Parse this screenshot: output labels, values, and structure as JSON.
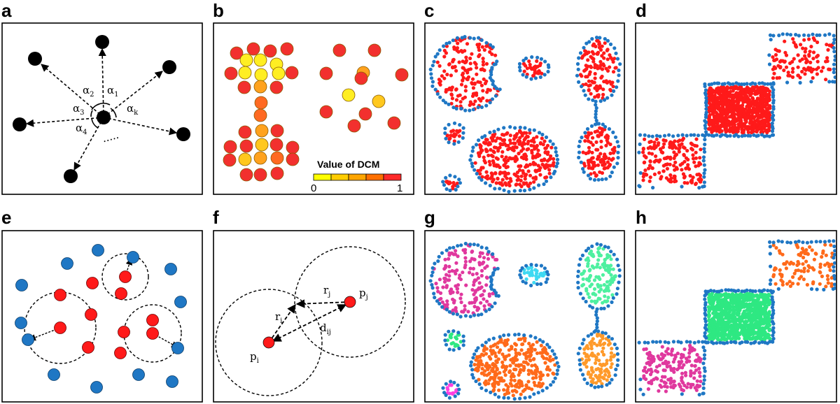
{
  "panel_labels": [
    "a",
    "b",
    "c",
    "d",
    "e",
    "f",
    "g",
    "h"
  ],
  "panel_a": {
    "angle_labels": [
      {
        "base": "α",
        "sub": "2"
      },
      {
        "base": "α",
        "sub": "1"
      },
      {
        "base": "α",
        "sub": "3"
      },
      {
        "base": "α",
        "sub": "k"
      },
      {
        "base": "α",
        "sub": "4"
      }
    ],
    "ellipsis": "....."
  },
  "panel_b": {
    "colorbar_title": "Value of DCM",
    "colorbar_min": "0",
    "colorbar_max": "1",
    "colorbar_colors": [
      "#ffff00",
      "#ffcc00",
      "#ffa500",
      "#ff6f00",
      "#ff2a2a"
    ]
  },
  "panel_f": {
    "labels": [
      {
        "base": "p",
        "sub": "i"
      },
      {
        "base": "p",
        "sub": "j"
      },
      {
        "base": "r",
        "sub": "i"
      },
      {
        "base": "r",
        "sub": "j"
      },
      {
        "base": "d",
        "sub": "ij"
      }
    ]
  },
  "colors": {
    "core_red": "#ff1a1a",
    "boundary_blue": "#1f77c4",
    "node_black": "#000000",
    "cluster_magenta": "#e0389e",
    "cluster_cyan": "#3fd9f2",
    "cluster_mint": "#4ef0a0",
    "cluster_orange": "#ff6a1a",
    "cluster_light_orange": "#ff9a2a",
    "cluster_pink": "#ff3fe0",
    "cluster_green": "#2ee882"
  }
}
